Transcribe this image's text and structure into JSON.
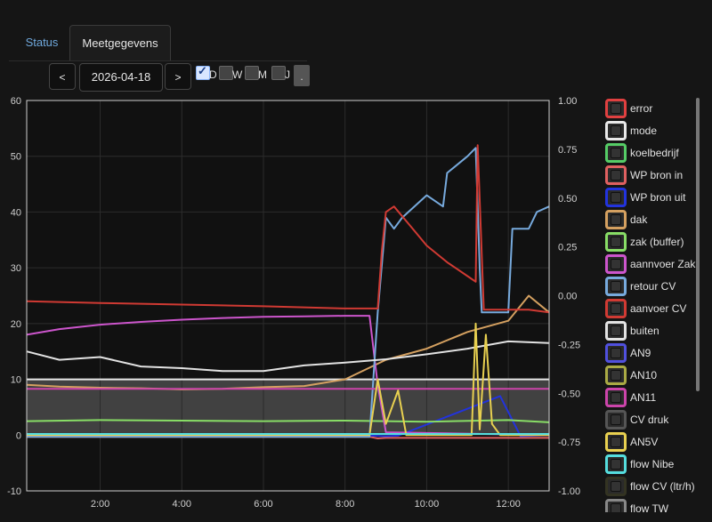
{
  "tabs": [
    {
      "label": "Status"
    },
    {
      "label": "Meetgegevens"
    }
  ],
  "nav": {
    "prev": "<",
    "date": "2026-04-18",
    "next": ">",
    "dot": "."
  },
  "periods": [
    {
      "label": "D",
      "checked": true
    },
    {
      "label": "W",
      "checked": false
    },
    {
      "label": "M",
      "checked": false
    },
    {
      "label": "J",
      "checked": false
    }
  ],
  "chart_data": {
    "type": "line",
    "xlabel": "",
    "ylabel": "",
    "xlim": [
      0.2,
      13.0
    ],
    "x_ticks": [
      "2:00",
      "4:00",
      "6:00",
      "8:00",
      "10:00",
      "12:00"
    ],
    "x_tick_values": [
      2,
      4,
      6,
      8,
      10,
      12
    ],
    "ylim_left": [
      -10,
      60
    ],
    "y_ticks_left": [
      "-10",
      "0",
      "10",
      "20",
      "30",
      "40",
      "50",
      "60"
    ],
    "ylim_right": [
      -1.0,
      1.0
    ],
    "y_ticks_right": [
      "-1.00",
      "-0.75",
      "-0.50",
      "-0.25",
      "0.00",
      "0.25",
      "0.50",
      "0.75",
      "1.00"
    ],
    "grid": true,
    "legend_position": "right",
    "series": [
      {
        "name": "error",
        "color": "#e04040",
        "x": [],
        "y": []
      },
      {
        "name": "mode",
        "color": "#e8e8e8",
        "x": [
          0.2,
          13
        ],
        "y": [
          10,
          10
        ]
      },
      {
        "name": "koelbedrijf",
        "color": "#55cc66",
        "x": [],
        "y": []
      },
      {
        "name": "WP bron in",
        "color": "#e06060",
        "x": [
          0.2,
          8.6,
          8.8,
          9.0,
          13
        ],
        "y": [
          -0.3,
          -0.3,
          -0.6,
          -0.5,
          -0.5
        ]
      },
      {
        "name": "WP bron uit",
        "color": "#2233dd",
        "x": [
          0.2,
          8.6,
          9.0,
          9.3,
          11.8,
          12.3,
          13
        ],
        "y": [
          -0.1,
          -0.1,
          -0.2,
          -0.1,
          7,
          -0.2,
          0
        ]
      },
      {
        "name": "dak",
        "color": "#d4a060",
        "x": [
          0.2,
          1,
          2,
          3,
          4,
          5,
          6,
          7,
          8,
          9,
          10,
          11,
          12,
          12.5,
          13
        ],
        "y": [
          9,
          8.7,
          8.5,
          8.4,
          8.2,
          8.3,
          8.6,
          8.8,
          10,
          13.5,
          15.5,
          18.5,
          20.5,
          25,
          22
        ]
      },
      {
        "name": "zak (buffer)",
        "color": "#88dd66",
        "x": [
          0.2,
          2,
          4,
          6,
          8,
          10,
          12,
          13
        ],
        "y": [
          2.5,
          2.7,
          2.6,
          2.5,
          2.6,
          2.4,
          2.7,
          2.3
        ]
      },
      {
        "name": "aannvoer Zak",
        "color": "#cc55cc",
        "x": [
          0.2,
          1,
          2,
          3,
          4,
          5,
          6,
          7,
          8,
          8.6,
          8.8,
          9.0,
          13
        ],
        "y": [
          18,
          19,
          19.8,
          20.3,
          20.7,
          21,
          21.2,
          21.3,
          21.4,
          21.4,
          9,
          0.5,
          0
        ]
      },
      {
        "name": "retour CV",
        "color": "#77aadd",
        "x": [
          0.2,
          8.6,
          8.8,
          9.0,
          9.2,
          9.4,
          10.0,
          10.4,
          10.5,
          11.0,
          11.2,
          11.3,
          11.35,
          12.0,
          12.1,
          12.5,
          12.7,
          13
        ],
        "y": [
          -0.3,
          -0.3,
          22,
          39,
          37,
          39,
          43,
          41,
          47,
          50,
          51.5,
          30,
          22,
          22,
          37,
          37,
          40,
          41
        ]
      },
      {
        "name": "aanvoer CV",
        "color": "#d03a33",
        "x": [
          0.2,
          2,
          4,
          6,
          8,
          8.8,
          8.9,
          9.0,
          9.2,
          9.6,
          10.0,
          10.5,
          11.0,
          11.2,
          11.25,
          11.4,
          12.0,
          12.5,
          13
        ],
        "y": [
          24,
          23.7,
          23.4,
          23.1,
          22.7,
          22.7,
          33,
          40,
          41,
          37.5,
          34,
          31,
          28.5,
          27.5,
          52,
          22.5,
          22.5,
          22.5,
          22
        ]
      },
      {
        "name": "buiten",
        "color": "#e2e2e2",
        "x": [
          0.2,
          1,
          2,
          3,
          4,
          5,
          6,
          7,
          8,
          9,
          10,
          11,
          12,
          13
        ],
        "y": [
          15,
          13.5,
          14,
          12.3,
          12,
          11.5,
          11.5,
          12.5,
          13,
          13.6,
          14.5,
          15.5,
          16.8,
          16.5
        ]
      },
      {
        "name": "AN9",
        "color": "#5050dd",
        "x": [],
        "y": []
      },
      {
        "name": "AN10",
        "color": "#aaaa44",
        "x": [],
        "y": []
      },
      {
        "name": "AN11",
        "color": "#cc44aa",
        "x": [
          0.2,
          13
        ],
        "y": [
          8.3,
          8.3
        ]
      },
      {
        "name": "CV druk",
        "color": "#555555",
        "x": [],
        "y": []
      },
      {
        "name": "AN5V",
        "color": "#e8d050",
        "x": [
          0.2,
          8.6,
          8.8,
          9.0,
          9.3,
          9.5,
          11.1,
          11.2,
          11.3,
          11.45,
          11.6,
          11.8,
          13
        ],
        "y": [
          0,
          0,
          10,
          2,
          8,
          0,
          0,
          20,
          1,
          18,
          2,
          0,
          0
        ]
      },
      {
        "name": "flow Nibe",
        "color": "#55dddd",
        "x": [
          0.2,
          13
        ],
        "y": [
          0.2,
          0.2
        ]
      },
      {
        "name": "flow CV (ltr/h)",
        "color": "#333322",
        "x": [],
        "y": []
      },
      {
        "name": "flow TW",
        "color": "#888888",
        "x": [],
        "y": []
      }
    ]
  }
}
